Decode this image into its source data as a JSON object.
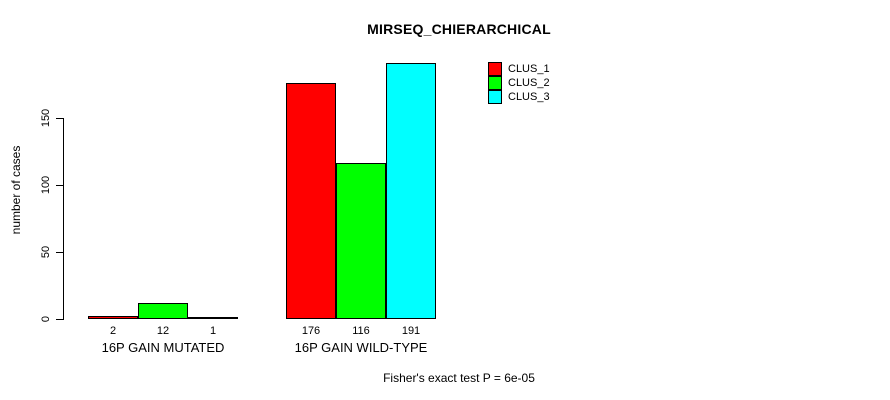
{
  "title": "MIRSEQ_CHIERARCHICAL",
  "footer": "Fisher's exact test P = 6e-05",
  "y_axis": {
    "label": "number of cases",
    "ticks": [
      0,
      50,
      100,
      150
    ]
  },
  "legend": {
    "items": [
      {
        "label": "CLUS_1",
        "color": "#ff0000"
      },
      {
        "label": "CLUS_2",
        "color": "#00ff00"
      },
      {
        "label": "CLUS_3",
        "color": "#00ffff"
      }
    ]
  },
  "chart_data": {
    "type": "bar",
    "title": "MIRSEQ_CHIERARCHICAL",
    "xlabel": "",
    "ylabel": "number of cases",
    "categories": [
      "16P GAIN MUTATED",
      "16P GAIN WILD-TYPE"
    ],
    "series": [
      {
        "name": "CLUS_1",
        "color": "#ff0000",
        "values": [
          2,
          176
        ]
      },
      {
        "name": "CLUS_2",
        "color": "#00ff00",
        "values": [
          12,
          116
        ]
      },
      {
        "name": "CLUS_3",
        "color": "#00ffff",
        "values": [
          1,
          191
        ]
      }
    ],
    "bar_value_labels": [
      [
        2,
        12,
        1
      ],
      [
        176,
        116,
        191
      ]
    ],
    "yticks": [
      0,
      50,
      100,
      150
    ],
    "ylim": [
      0,
      200
    ],
    "grid": false,
    "bar_border_color": "#000000",
    "legend_position": "top-right",
    "annotation": "Fisher's exact test P = 6e-05"
  }
}
